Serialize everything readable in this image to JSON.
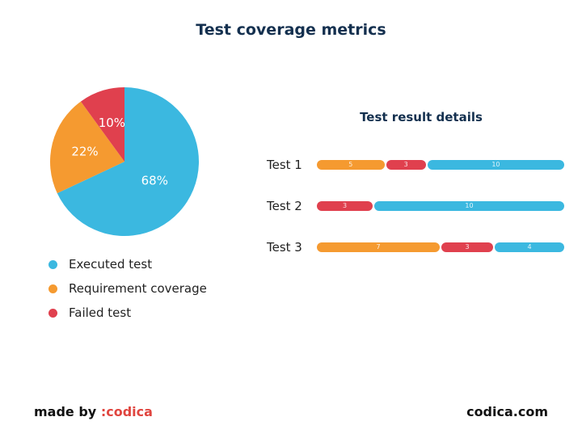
{
  "header": {
    "title": "Test coverage metrics"
  },
  "colors": {
    "executed": "#3bb8e0",
    "requirement": "#f59a30",
    "failed": "#e0404e"
  },
  "chart_data": [
    {
      "type": "pie",
      "title": "Test coverage metrics",
      "slices": [
        {
          "label": "Executed test",
          "value": 68,
          "display": "68%",
          "color": "#3bb8e0"
        },
        {
          "label": "Requirement coverage",
          "value": 22,
          "display": "22%",
          "color": "#f59a30"
        },
        {
          "label": "Failed test",
          "value": 10,
          "display": "10%",
          "color": "#e0404e"
        }
      ],
      "legend": [
        "Executed test",
        "Requirement coverage",
        "Failed test"
      ]
    },
    {
      "type": "bar",
      "orientation": "horizontal",
      "stacked": true,
      "title": "Test result details",
      "categories": [
        "Test 1",
        "Test 2",
        "Test 3"
      ],
      "rows": [
        {
          "label": "Test 1",
          "segments": [
            {
              "value": 5,
              "color": "#f59a30"
            },
            {
              "value": 3,
              "color": "#e0404e"
            },
            {
              "value": 10,
              "color": "#3bb8e0"
            }
          ]
        },
        {
          "label": "Test 2",
          "segments": [
            {
              "value": 3,
              "color": "#e0404e"
            },
            {
              "value": 10,
              "color": "#3bb8e0"
            }
          ]
        },
        {
          "label": "Test 3",
          "segments": [
            {
              "value": 7,
              "color": "#f59a30"
            },
            {
              "value": 3,
              "color": "#e0404e"
            },
            {
              "value": 4,
              "color": "#3bb8e0"
            }
          ]
        }
      ]
    }
  ],
  "footer": {
    "made_by": "made by",
    "brand": ":codica",
    "site": "codica.com"
  }
}
